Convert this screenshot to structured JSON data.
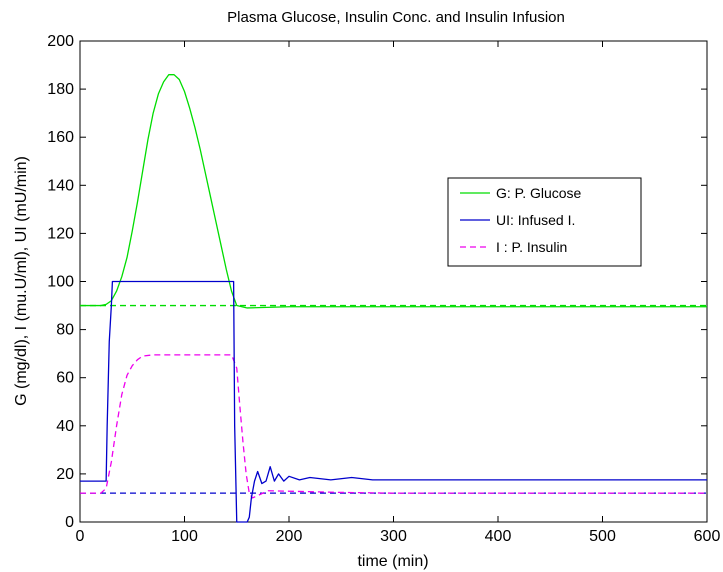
{
  "chart_data": {
    "type": "line",
    "title": "Plasma Glucose, Insulin Conc. and Insulin Infusion",
    "xlabel": "time (min)",
    "ylabel": "G (mg/dl), I (mu.U/ml), UI (mU/min)",
    "xlim": [
      0,
      600
    ],
    "ylim": [
      0,
      200
    ],
    "xticks": [
      0,
      100,
      200,
      300,
      400,
      500,
      600
    ],
    "yticks": [
      0,
      20,
      40,
      60,
      80,
      100,
      120,
      140,
      160,
      180,
      200
    ],
    "grid": false,
    "legend_position": "center-right",
    "series": [
      {
        "name": "G: P. Glucose",
        "color": "#00dd00",
        "dash": "solid",
        "points": [
          [
            0,
            90
          ],
          [
            20,
            90
          ],
          [
            25,
            90.5
          ],
          [
            30,
            92
          ],
          [
            35,
            96
          ],
          [
            40,
            102
          ],
          [
            45,
            110
          ],
          [
            50,
            121
          ],
          [
            55,
            133
          ],
          [
            60,
            146
          ],
          [
            65,
            159
          ],
          [
            70,
            170
          ],
          [
            75,
            178
          ],
          [
            80,
            183
          ],
          [
            85,
            186
          ],
          [
            90,
            186
          ],
          [
            95,
            184
          ],
          [
            100,
            179
          ],
          [
            105,
            172
          ],
          [
            110,
            164
          ],
          [
            115,
            155
          ],
          [
            120,
            145
          ],
          [
            125,
            135
          ],
          [
            130,
            125
          ],
          [
            135,
            115
          ],
          [
            140,
            105
          ],
          [
            145,
            96
          ],
          [
            150,
            90
          ],
          [
            155,
            89.5
          ],
          [
            160,
            89
          ],
          [
            200,
            89.5
          ],
          [
            300,
            89.5
          ],
          [
            400,
            89.5
          ],
          [
            500,
            89.5
          ],
          [
            600,
            89.5
          ]
        ]
      },
      {
        "name": "UI: Infused I.",
        "color": "#0000cc",
        "dash": "solid",
        "points": [
          [
            0,
            17
          ],
          [
            25,
            17
          ],
          [
            26,
            40
          ],
          [
            28,
            75
          ],
          [
            30,
            90
          ],
          [
            31,
            100
          ],
          [
            147,
            100
          ],
          [
            148,
            40
          ],
          [
            150,
            0
          ],
          [
            160,
            0
          ],
          [
            162,
            2
          ],
          [
            164,
            10
          ],
          [
            167,
            17
          ],
          [
            170,
            21
          ],
          [
            174,
            16
          ],
          [
            178,
            17
          ],
          [
            182,
            23
          ],
          [
            186,
            17
          ],
          [
            190,
            20
          ],
          [
            195,
            17
          ],
          [
            200,
            19
          ],
          [
            210,
            17.5
          ],
          [
            220,
            18.5
          ],
          [
            240,
            17.5
          ],
          [
            260,
            18.5
          ],
          [
            280,
            17.5
          ],
          [
            300,
            17.5
          ],
          [
            400,
            17.5
          ],
          [
            500,
            17.5
          ],
          [
            600,
            17.5
          ]
        ]
      },
      {
        "name": "I : P. Insulin",
        "color": "#ee00ee",
        "dash": "dashed",
        "points": [
          [
            0,
            12
          ],
          [
            20,
            12
          ],
          [
            25,
            14
          ],
          [
            30,
            25
          ],
          [
            35,
            40
          ],
          [
            40,
            53
          ],
          [
            45,
            61
          ],
          [
            50,
            65
          ],
          [
            55,
            67.5
          ],
          [
            60,
            69
          ],
          [
            70,
            69.5
          ],
          [
            100,
            69.5
          ],
          [
            145,
            69.5
          ],
          [
            150,
            64
          ],
          [
            153,
            48
          ],
          [
            156,
            33
          ],
          [
            159,
            20
          ],
          [
            162,
            12
          ],
          [
            165,
            10
          ],
          [
            170,
            11
          ],
          [
            180,
            13
          ],
          [
            200,
            12.8
          ],
          [
            250,
            12.3
          ],
          [
            300,
            12
          ],
          [
            400,
            12
          ],
          [
            500,
            12
          ],
          [
            600,
            12
          ]
        ]
      },
      {
        "name": "G baseline",
        "color": "#00dd00",
        "dash": "dashed",
        "points": [
          [
            0,
            90
          ],
          [
            600,
            90
          ]
        ]
      },
      {
        "name": "I baseline",
        "color": "#0000cc",
        "dash": "dashed",
        "points": [
          [
            0,
            12
          ],
          [
            600,
            12
          ]
        ]
      }
    ],
    "legend": [
      {
        "label": "G: P. Glucose",
        "color": "#00dd00",
        "dash": "solid"
      },
      {
        "label": "UI: Infused I.",
        "color": "#0000cc",
        "dash": "solid"
      },
      {
        "label": "I : P. Insulin",
        "color": "#ee00ee",
        "dash": "dashed"
      }
    ]
  }
}
